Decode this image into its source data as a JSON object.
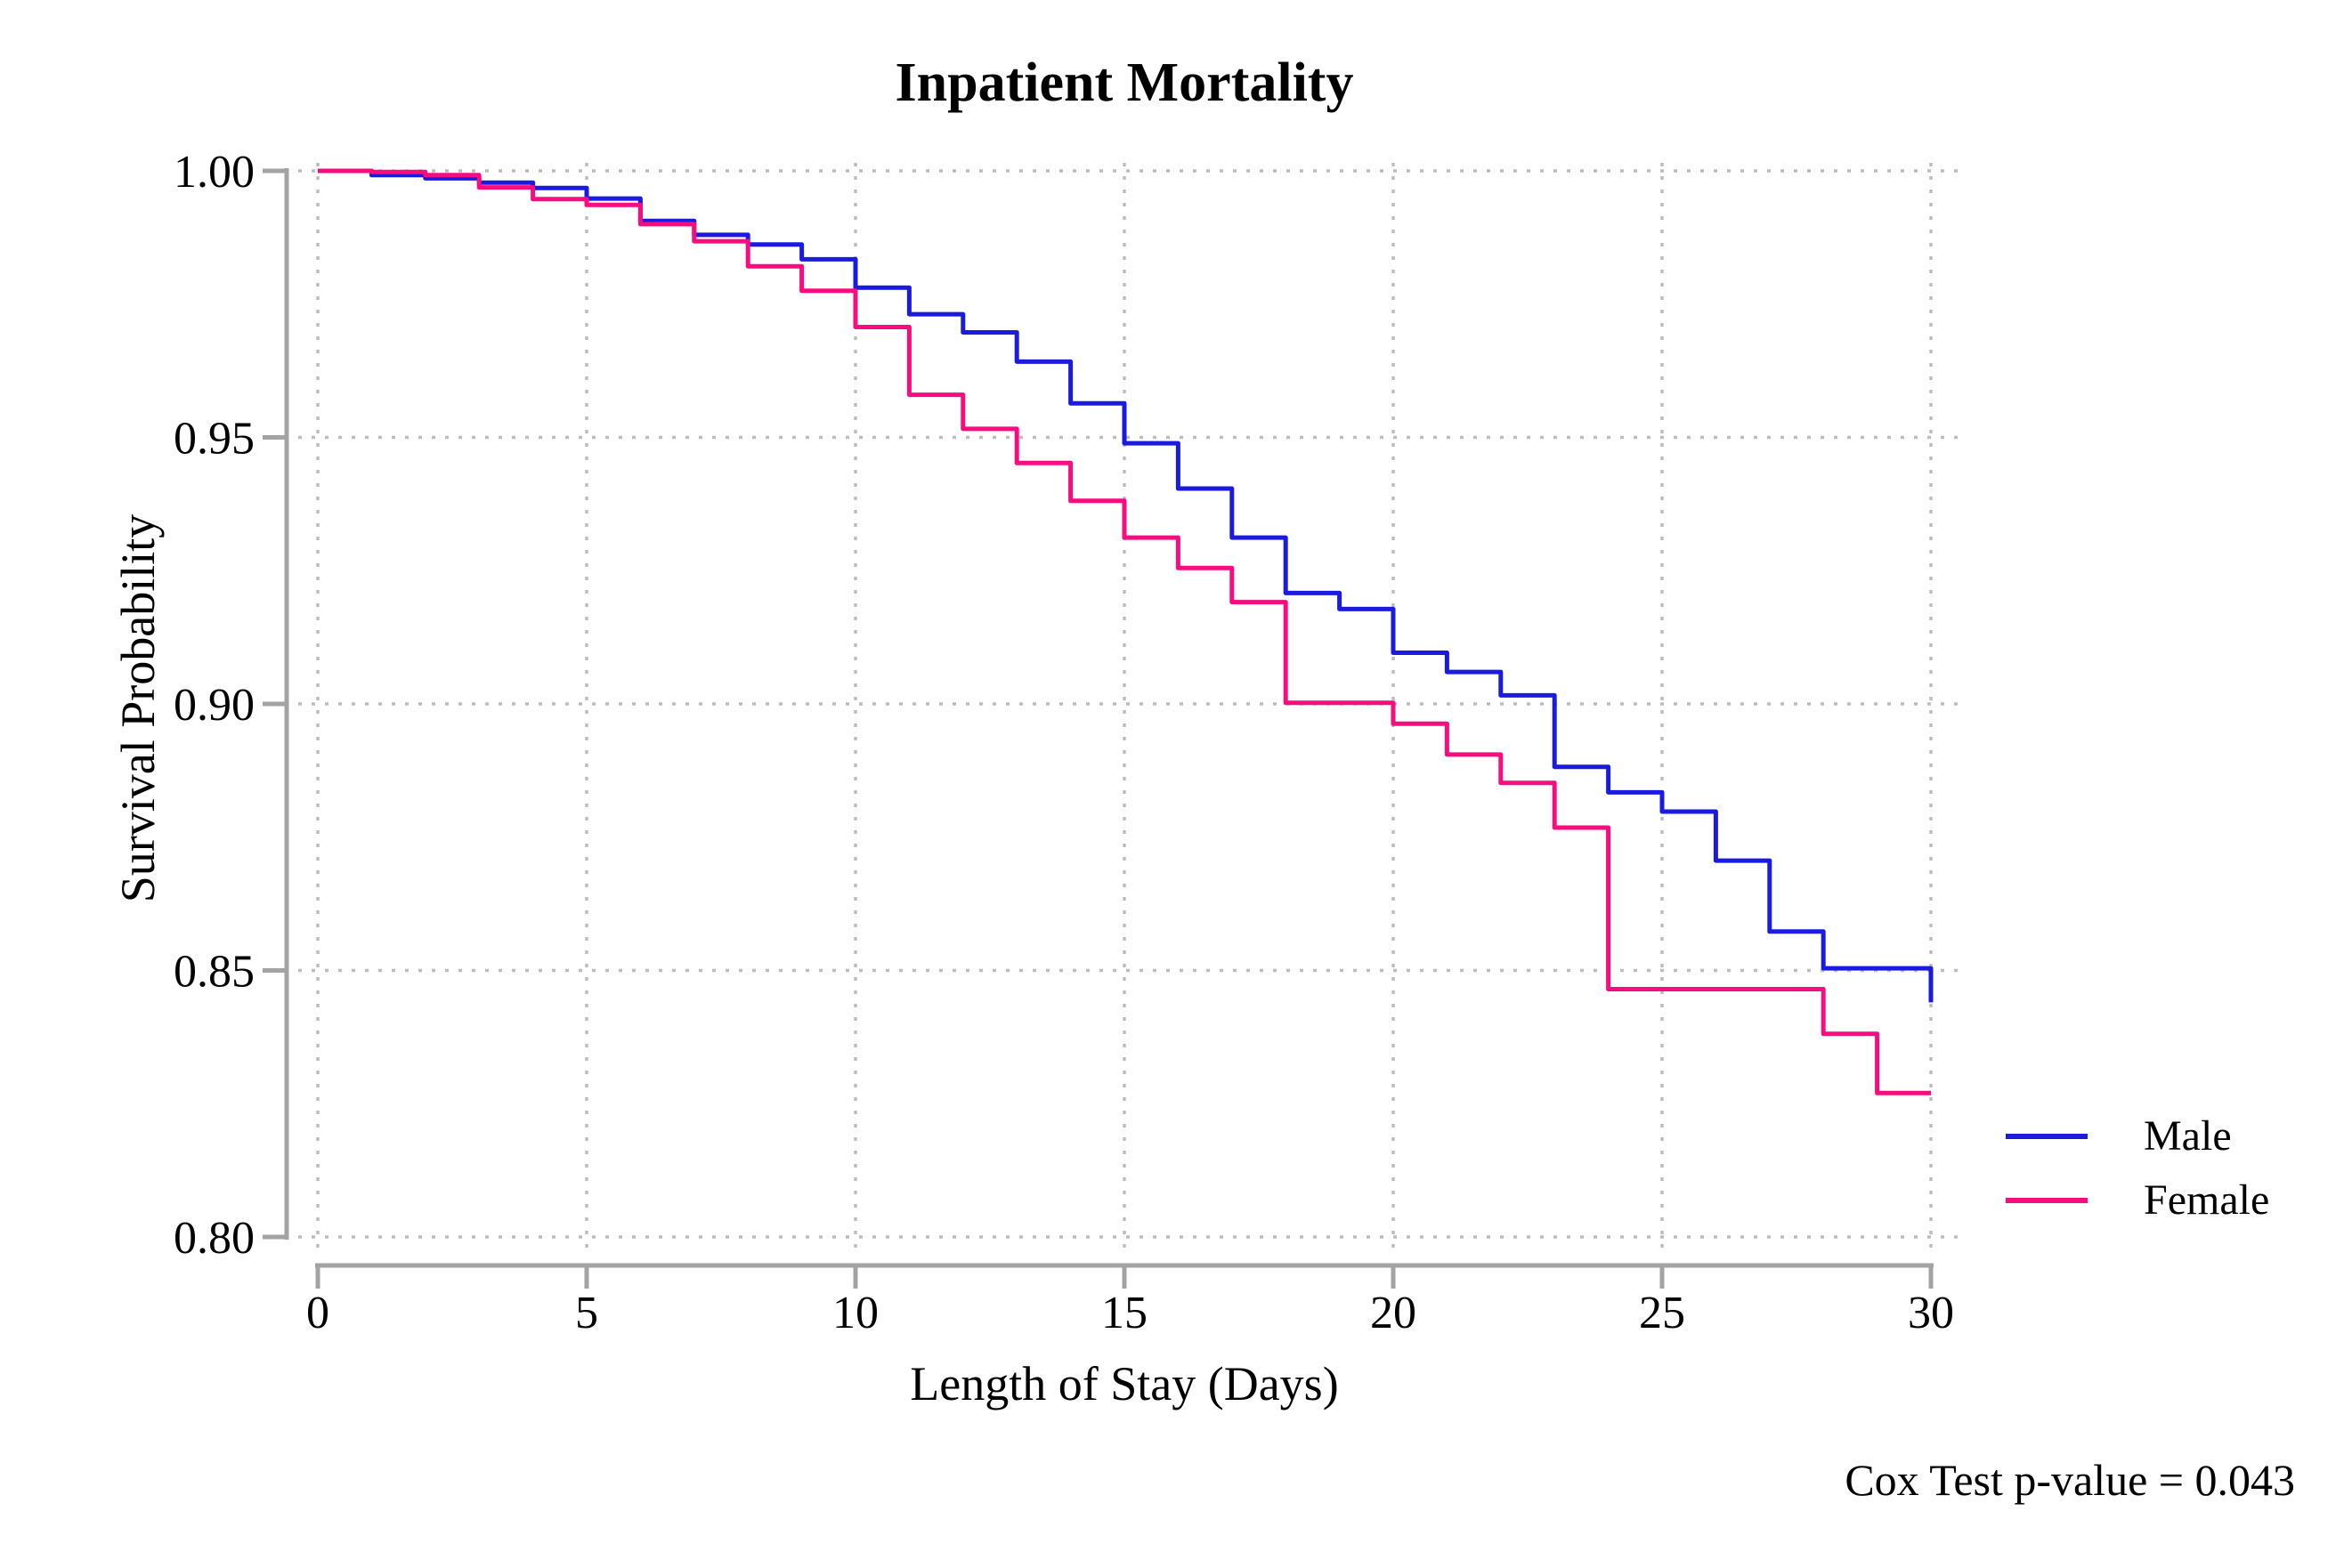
{
  "chart_data": {
    "type": "line",
    "chart_kind": "kaplan-meier-survival-step",
    "title": "Inpatient Mortality",
    "xlabel": "Length of Stay (Days)",
    "ylabel": "Survival Probability",
    "xlim": [
      0,
      30
    ],
    "ylim": [
      0.8,
      1.0
    ],
    "x_ticks": [
      0,
      5,
      10,
      15,
      20,
      25,
      30
    ],
    "x_tick_labels": [
      "0",
      "5",
      "10",
      "15",
      "20",
      "25",
      "30"
    ],
    "y_ticks": [
      1.0,
      0.95,
      0.9,
      0.85,
      0.8
    ],
    "y_tick_labels": [
      "1.00",
      "0.95",
      "0.90",
      "0.85",
      "0.80"
    ],
    "grid": "dotted",
    "legend_position": "right-below-plot",
    "annotation": "Cox Test p-value = 0.043",
    "series": [
      {
        "name": "Male",
        "color": "#1b1be0",
        "points": [
          [
            0,
            1.0
          ],
          [
            1,
            0.9992
          ],
          [
            2,
            0.9986
          ],
          [
            3,
            0.9978
          ],
          [
            4,
            0.9968
          ],
          [
            5,
            0.9948
          ],
          [
            6,
            0.9906
          ],
          [
            7,
            0.988
          ],
          [
            8,
            0.9862
          ],
          [
            9,
            0.9834
          ],
          [
            10,
            0.9781
          ],
          [
            11,
            0.9731
          ],
          [
            12,
            0.9697
          ],
          [
            13,
            0.9642
          ],
          [
            14,
            0.9564
          ],
          [
            15,
            0.9489
          ],
          [
            16,
            0.9404
          ],
          [
            17,
            0.9312
          ],
          [
            18,
            0.9208
          ],
          [
            19,
            0.9178
          ],
          [
            20,
            0.9096
          ],
          [
            21,
            0.906
          ],
          [
            22,
            0.9016
          ],
          [
            23,
            0.8882
          ],
          [
            24,
            0.8834
          ],
          [
            25,
            0.8798
          ],
          [
            26,
            0.8706
          ],
          [
            27,
            0.8573
          ],
          [
            28,
            0.8504
          ],
          [
            29,
            0.8504
          ],
          [
            30,
            0.844
          ]
        ]
      },
      {
        "name": "Female",
        "color": "#f70d7e",
        "points": [
          [
            0,
            1.0
          ],
          [
            1,
            0.9998
          ],
          [
            2,
            0.9992
          ],
          [
            3,
            0.9969
          ],
          [
            4,
            0.9947
          ],
          [
            5,
            0.9936
          ],
          [
            6,
            0.99
          ],
          [
            7,
            0.9868
          ],
          [
            8,
            0.9821
          ],
          [
            9,
            0.9775
          ],
          [
            10,
            0.9707
          ],
          [
            11,
            0.958
          ],
          [
            12,
            0.9516
          ],
          [
            13,
            0.9452
          ],
          [
            14,
            0.9381
          ],
          [
            15,
            0.9312
          ],
          [
            16,
            0.9255
          ],
          [
            17,
            0.9191
          ],
          [
            18,
            0.9002
          ],
          [
            19,
            0.9002
          ],
          [
            20,
            0.8963
          ],
          [
            21,
            0.8905
          ],
          [
            22,
            0.8852
          ],
          [
            23,
            0.8768
          ],
          [
            24,
            0.8465
          ],
          [
            25,
            0.8465
          ],
          [
            26,
            0.8465
          ],
          [
            27,
            0.8465
          ],
          [
            28,
            0.8381
          ],
          [
            29,
            0.827
          ],
          [
            30,
            0.827
          ]
        ]
      }
    ]
  },
  "colors": {
    "background": "#ffffff",
    "axis": "#a3a3a3",
    "grid": "#bdbdbd",
    "text": "#000000",
    "male": "#1b1be0",
    "female": "#f70d7e"
  }
}
